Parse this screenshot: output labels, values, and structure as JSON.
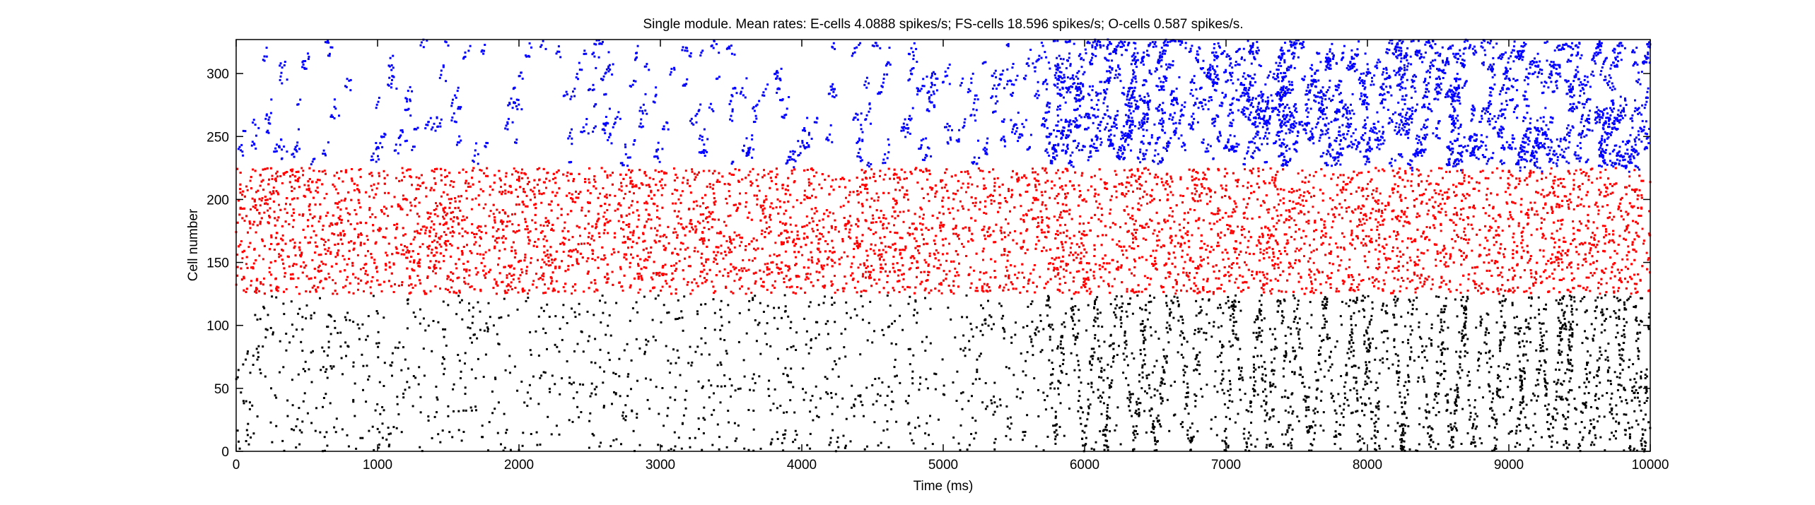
{
  "chart_data": {
    "type": "scatter",
    "title": "Single module. Mean rates: E-cells 4.0888 spikes/s; FS-cells 18.596 spikes/s; O-cells 0.587 spikes/s.",
    "xlabel": "Time (ms)",
    "ylabel": "Cell number",
    "xlim": [
      0,
      10000
    ],
    "ylim": [
      0,
      327
    ],
    "x_ticks": [
      0,
      1000,
      2000,
      3000,
      4000,
      5000,
      6000,
      7000,
      8000,
      9000,
      10000
    ],
    "y_ticks": [
      0,
      50,
      100,
      150,
      200,
      250,
      300
    ],
    "grid": false,
    "legend": "none",
    "series": [
      {
        "cell_range": [
          0,
          124
        ],
        "color": "#000000",
        "mean_rate": 4.0888,
        "synchronous_bursts_ms": [
          5800,
          6000,
          6150,
          6350,
          6500,
          6750,
          7000,
          7150,
          7300,
          7450,
          7600,
          7800,
          7950,
          8050,
          8250,
          8450,
          8600,
          8750,
          8900,
          9050,
          9150,
          9300,
          9400,
          9500,
          9600,
          9750,
          9850,
          9950
        ]
      },
      {
        "cell_range": [
          125,
          225
        ],
        "color": "#ff0000",
        "mean_rate": 18.596
      },
      {
        "cell_range": [
          226,
          327
        ],
        "color": "#0000ff",
        "mean_rate": 0.587,
        "activity_bins": [
          {
            "range": [
              0,
              1000
            ],
            "density": 0.15
          },
          {
            "range": [
              1000,
              4700
            ],
            "density": 0.2
          },
          {
            "range": [
              4700,
              5700
            ],
            "density": 0.3
          },
          {
            "range": [
              5700,
              10000
            ],
            "density": 1.0
          }
        ]
      }
    ]
  }
}
